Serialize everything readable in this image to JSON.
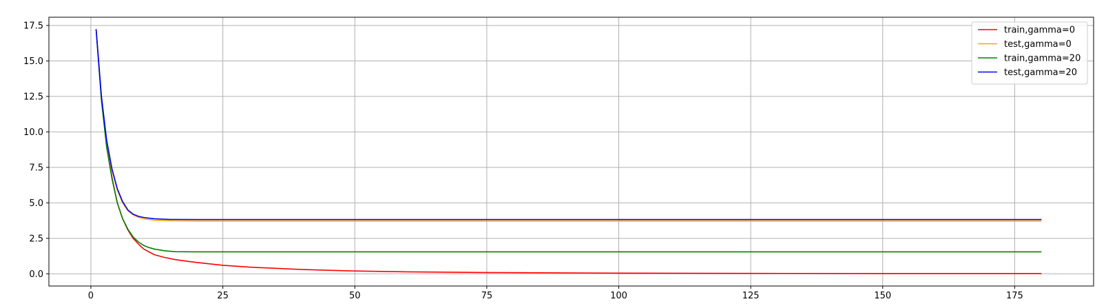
{
  "chart_data": {
    "type": "line",
    "title": "",
    "xlabel": "",
    "ylabel": "",
    "xlim": [
      -7.95,
      189.95
    ],
    "ylim": [
      -0.86,
      18.08
    ],
    "xticks": [
      0,
      25,
      50,
      75,
      100,
      125,
      150,
      175
    ],
    "xtick_labels": [
      "0",
      "25",
      "50",
      "75",
      "100",
      "125",
      "150",
      "175"
    ],
    "yticks": [
      0.0,
      2.5,
      5.0,
      7.5,
      10.0,
      12.5,
      15.0,
      17.5
    ],
    "ytick_labels": [
      "0.0",
      "2.5",
      "5.0",
      "7.5",
      "10.0",
      "12.5",
      "15.0",
      "17.5"
    ],
    "grid": true,
    "legend_position": "top-right",
    "series": [
      {
        "name": "train,gamma=0",
        "color": "#ff0000",
        "x": [
          1,
          2,
          3,
          4,
          5,
          6,
          7,
          8,
          9,
          10,
          12,
          14,
          16,
          18,
          20,
          25,
          30,
          40,
          50,
          60,
          75,
          100,
          125,
          150,
          180
        ],
        "y": [
          17.2,
          12.3,
          9.0,
          6.8,
          5.0,
          3.9,
          3.1,
          2.5,
          2.1,
          1.75,
          1.35,
          1.15,
          1.0,
          0.9,
          0.8,
          0.6,
          0.47,
          0.3,
          0.2,
          0.14,
          0.09,
          0.05,
          0.03,
          0.02,
          0.02
        ]
      },
      {
        "name": "test,gamma=0",
        "color": "#ffa500",
        "x": [
          1,
          2,
          3,
          4,
          5,
          6,
          7,
          8,
          9,
          10,
          12,
          15,
          20,
          30,
          50,
          100,
          150,
          180
        ],
        "y": [
          17.2,
          12.4,
          9.3,
          7.3,
          5.9,
          5.0,
          4.45,
          4.15,
          3.98,
          3.88,
          3.78,
          3.74,
          3.72,
          3.72,
          3.72,
          3.72,
          3.72,
          3.72
        ]
      },
      {
        "name": "train,gamma=20",
        "color": "#008000",
        "x": [
          1,
          2,
          3,
          4,
          5,
          6,
          7,
          8,
          9,
          10,
          11,
          12,
          14,
          16,
          20,
          25,
          50,
          100,
          150,
          180
        ],
        "y": [
          17.2,
          12.2,
          8.9,
          6.7,
          5.0,
          3.9,
          3.15,
          2.6,
          2.25,
          2.0,
          1.85,
          1.75,
          1.62,
          1.56,
          1.55,
          1.55,
          1.55,
          1.55,
          1.55,
          1.55
        ]
      },
      {
        "name": "test,gamma=20",
        "color": "#0000ff",
        "x": [
          1,
          2,
          3,
          4,
          5,
          6,
          7,
          8,
          9,
          10,
          12,
          15,
          20,
          30,
          50,
          100,
          150,
          180
        ],
        "y": [
          17.2,
          12.5,
          9.4,
          7.4,
          6.0,
          5.1,
          4.5,
          4.2,
          4.05,
          3.97,
          3.88,
          3.83,
          3.82,
          3.82,
          3.82,
          3.82,
          3.82,
          3.82
        ]
      }
    ]
  }
}
